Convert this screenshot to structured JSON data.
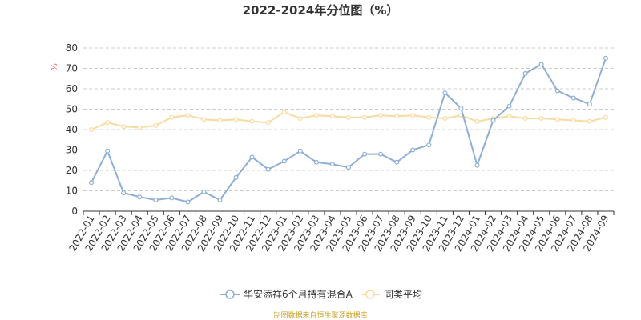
{
  "chart_data": {
    "type": "line",
    "title": "2022-2024年分位图（%）",
    "y_unit": "%",
    "ylim": [
      0,
      80
    ],
    "yticks": [
      0,
      10,
      20,
      30,
      40,
      50,
      60,
      70,
      80
    ],
    "grid": "horizontal-dashed",
    "legend_position": "bottom",
    "categories": [
      "2022-01",
      "2022-02",
      "2022-03",
      "2022-04",
      "2022-05",
      "2022-06",
      "2022-07",
      "2022-08",
      "2022-09",
      "2022-10",
      "2022-11",
      "2022-12",
      "2023-01",
      "2023-02",
      "2023-03",
      "2023-04",
      "2023-05",
      "2023-06",
      "2023-07",
      "2023-08",
      "2023-09",
      "2023-10",
      "2023-11",
      "2023-12",
      "2024-01",
      "2024-02",
      "2024-03",
      "2024-04",
      "2024-05",
      "2024-06",
      "2024-07",
      "2024-08",
      "2024-09"
    ],
    "series": [
      {
        "name": "华安添祥6个月持有混合A",
        "color": "#8eaed6",
        "values": [
          14,
          29.5,
          9,
          7,
          5.5,
          6.5,
          4.5,
          9.5,
          5.5,
          16.5,
          26.5,
          20.5,
          24.5,
          29.5,
          24,
          23,
          21.5,
          28,
          28,
          24,
          30,
          32.5,
          58,
          50.5,
          22.5,
          44.5,
          51.5,
          67.5,
          72,
          59,
          55.5,
          52.5,
          75
        ]
      },
      {
        "name": "同类平均",
        "color": "#f8dba0",
        "values": [
          40,
          43.5,
          41.5,
          41,
          42,
          46,
          47,
          45,
          44.5,
          45,
          44,
          43.5,
          48.5,
          45.5,
          47,
          46.5,
          46,
          46,
          47,
          46.5,
          47,
          46,
          45.5,
          47,
          44,
          45.5,
          46.5,
          45.5,
          45.5,
          45,
          44.5,
          44,
          46
        ]
      }
    ],
    "source_note": "制图数据来自恒生聚源数据库"
  }
}
